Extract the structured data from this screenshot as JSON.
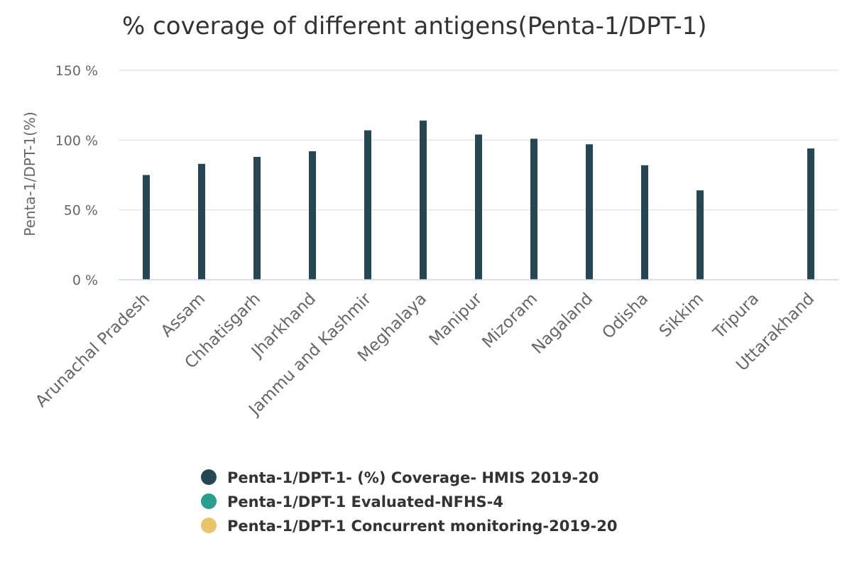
{
  "chart_data": {
    "type": "bar",
    "title": "% coverage of different antigens(Penta-1/DPT-1)",
    "ylabel": "Penta-1/DPT-1(%)",
    "xlabel": "",
    "ylim": [
      0,
      150
    ],
    "yticks": [
      0,
      50,
      100,
      150
    ],
    "ytick_labels": [
      "0 %",
      "50 %",
      "100 %",
      "150 %"
    ],
    "grid": true,
    "legend_position": "bottom",
    "categories": [
      "Arunachal Pradesh",
      "Assam",
      "Chhatisgarh",
      "Jharkhand",
      "Jammu and Kashmir",
      "Meghalaya",
      "Manipur",
      "Mizoram",
      "Nagaland",
      "Odisha",
      "Sikkim",
      "Tripura",
      "Uttarakhand"
    ],
    "series": [
      {
        "name": "Penta-1/DPT-1- (%) Coverage- HMIS 2019-20",
        "color": "#264653",
        "values": [
          75,
          83,
          88,
          92,
          107,
          114,
          104,
          101,
          97,
          82,
          64,
          null,
          94
        ]
      },
      {
        "name": "Penta-1/DPT-1 Evaluated-NFHS-4",
        "color": "#2a9d8f",
        "values": [
          null,
          null,
          null,
          null,
          null,
          null,
          null,
          null,
          null,
          null,
          null,
          null,
          null
        ]
      },
      {
        "name": "Penta-1/DPT-1 Concurrent monitoring-2019-20",
        "color": "#e9c46a",
        "values": [
          null,
          null,
          null,
          null,
          null,
          null,
          null,
          null,
          null,
          null,
          null,
          null,
          null
        ]
      }
    ]
  }
}
